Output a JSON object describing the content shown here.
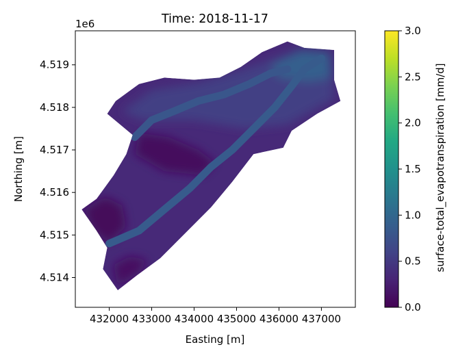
{
  "chart_data": {
    "type": "heatmap",
    "title": "Time: 2018-11-17",
    "xlabel": "Easting [m]",
    "ylabel": "Northing [m]",
    "x_ticks": [
      "432000",
      "433000",
      "434000",
      "435000",
      "436000",
      "437000"
    ],
    "x_tick_values": [
      432000,
      433000,
      434000,
      435000,
      436000,
      437000
    ],
    "y_ticks": [
      "4.514",
      "4.515",
      "4.516",
      "4.517",
      "4.518",
      "4.519"
    ],
    "y_tick_values": [
      4.514,
      4.515,
      4.516,
      4.517,
      4.518,
      4.519
    ],
    "y_offset_label": "1e6",
    "xlim": [
      431200,
      437800
    ],
    "ylim": [
      4513300,
      4519800
    ],
    "colorbar": {
      "label": "surface-total_evapotranspiration [mm/d]",
      "colormap": "viridis",
      "range": [
        0.0,
        3.0
      ],
      "ticks": [
        "0.0",
        "0.5",
        "1.0",
        "1.5",
        "2.0",
        "2.5",
        "3.0"
      ],
      "tick_values": [
        0.0,
        0.5,
        1.0,
        1.5,
        2.0,
        2.5,
        3.0
      ]
    },
    "domain_outline": [
      [
        431350,
        4515600
      ],
      [
        431700,
        4515850
      ],
      [
        432100,
        4516400
      ],
      [
        432400,
        4516900
      ],
      [
        432550,
        4517350
      ],
      [
        432250,
        4517600
      ],
      [
        431950,
        4517850
      ],
      [
        432150,
        4518150
      ],
      [
        432700,
        4518550
      ],
      [
        433300,
        4518700
      ],
      [
        434000,
        4518650
      ],
      [
        434600,
        4518700
      ],
      [
        435100,
        4518950
      ],
      [
        435600,
        4519300
      ],
      [
        436200,
        4519550
      ],
      [
        436600,
        4519400
      ],
      [
        437300,
        4519350
      ],
      [
        437300,
        4518650
      ],
      [
        437450,
        4518150
      ],
      [
        436900,
        4517850
      ],
      [
        436300,
        4517450
      ],
      [
        436100,
        4517050
      ],
      [
        435400,
        4516900
      ],
      [
        434900,
        4516250
      ],
      [
        434400,
        4515650
      ],
      [
        433800,
        4515050
      ],
      [
        433200,
        4514450
      ],
      [
        432650,
        4514050
      ],
      [
        432200,
        4513700
      ],
      [
        431850,
        4514200
      ],
      [
        431950,
        4514700
      ],
      [
        431700,
        4515100
      ],
      [
        431350,
        4515600
      ]
    ],
    "background_value": 0.35,
    "regions": [
      {
        "zone": "upper-basin",
        "value": 0.55,
        "polygon": [
          [
            432300,
            4517900
          ],
          [
            433000,
            4518400
          ],
          [
            434200,
            4518600
          ],
          [
            435200,
            4518900
          ],
          [
            436400,
            4519300
          ],
          [
            437200,
            4519200
          ],
          [
            437300,
            4518200
          ],
          [
            436200,
            4517600
          ],
          [
            435200,
            4517500
          ],
          [
            434000,
            4517700
          ],
          [
            432800,
            4517700
          ]
        ]
      },
      {
        "zone": "north-east-channel",
        "value": 0.9,
        "polygon": [
          [
            435800,
            4519000
          ],
          [
            436500,
            4519350
          ],
          [
            437200,
            4519300
          ],
          [
            437250,
            4518700
          ],
          [
            436700,
            4518600
          ],
          [
            436000,
            4518700
          ]
        ]
      },
      {
        "zone": "central-low",
        "value": 0.08,
        "polygon": [
          [
            432700,
            4517400
          ],
          [
            433400,
            4517300
          ],
          [
            434100,
            4517000
          ],
          [
            434500,
            4516700
          ],
          [
            434200,
            4516400
          ],
          [
            433300,
            4516500
          ],
          [
            432600,
            4516900
          ]
        ]
      },
      {
        "zone": "south-west-low",
        "value": 0.05,
        "polygon": [
          [
            431400,
            4515600
          ],
          [
            431900,
            4515900
          ],
          [
            432300,
            4515700
          ],
          [
            432400,
            4515200
          ],
          [
            432000,
            4514800
          ],
          [
            431600,
            4515100
          ]
        ]
      },
      {
        "zone": "south-tip-low",
        "value": 0.12,
        "polygon": [
          [
            432200,
            4513800
          ],
          [
            432700,
            4514100
          ],
          [
            432900,
            4514400
          ],
          [
            432500,
            4514500
          ],
          [
            432100,
            4514300
          ]
        ]
      }
    ],
    "channels": [
      {
        "name": "main-valley",
        "value": 0.85,
        "path": [
          [
            432000,
            4514800
          ],
          [
            432700,
            4515100
          ],
          [
            433300,
            4515600
          ],
          [
            433900,
            4516100
          ],
          [
            434400,
            4516600
          ],
          [
            434900,
            4517000
          ],
          [
            435400,
            4517500
          ],
          [
            435900,
            4518000
          ],
          [
            436300,
            4518500
          ],
          [
            436600,
            4518900
          ],
          [
            437000,
            4519150
          ]
        ]
      },
      {
        "name": "northern-ridge",
        "value": 0.8,
        "path": [
          [
            432600,
            4517300
          ],
          [
            433000,
            4517700
          ],
          [
            433500,
            4517900
          ],
          [
            434100,
            4518150
          ],
          [
            434700,
            4518300
          ],
          [
            435300,
            4518550
          ],
          [
            435800,
            4518800
          ],
          [
            436200,
            4518900
          ]
        ]
      }
    ]
  }
}
